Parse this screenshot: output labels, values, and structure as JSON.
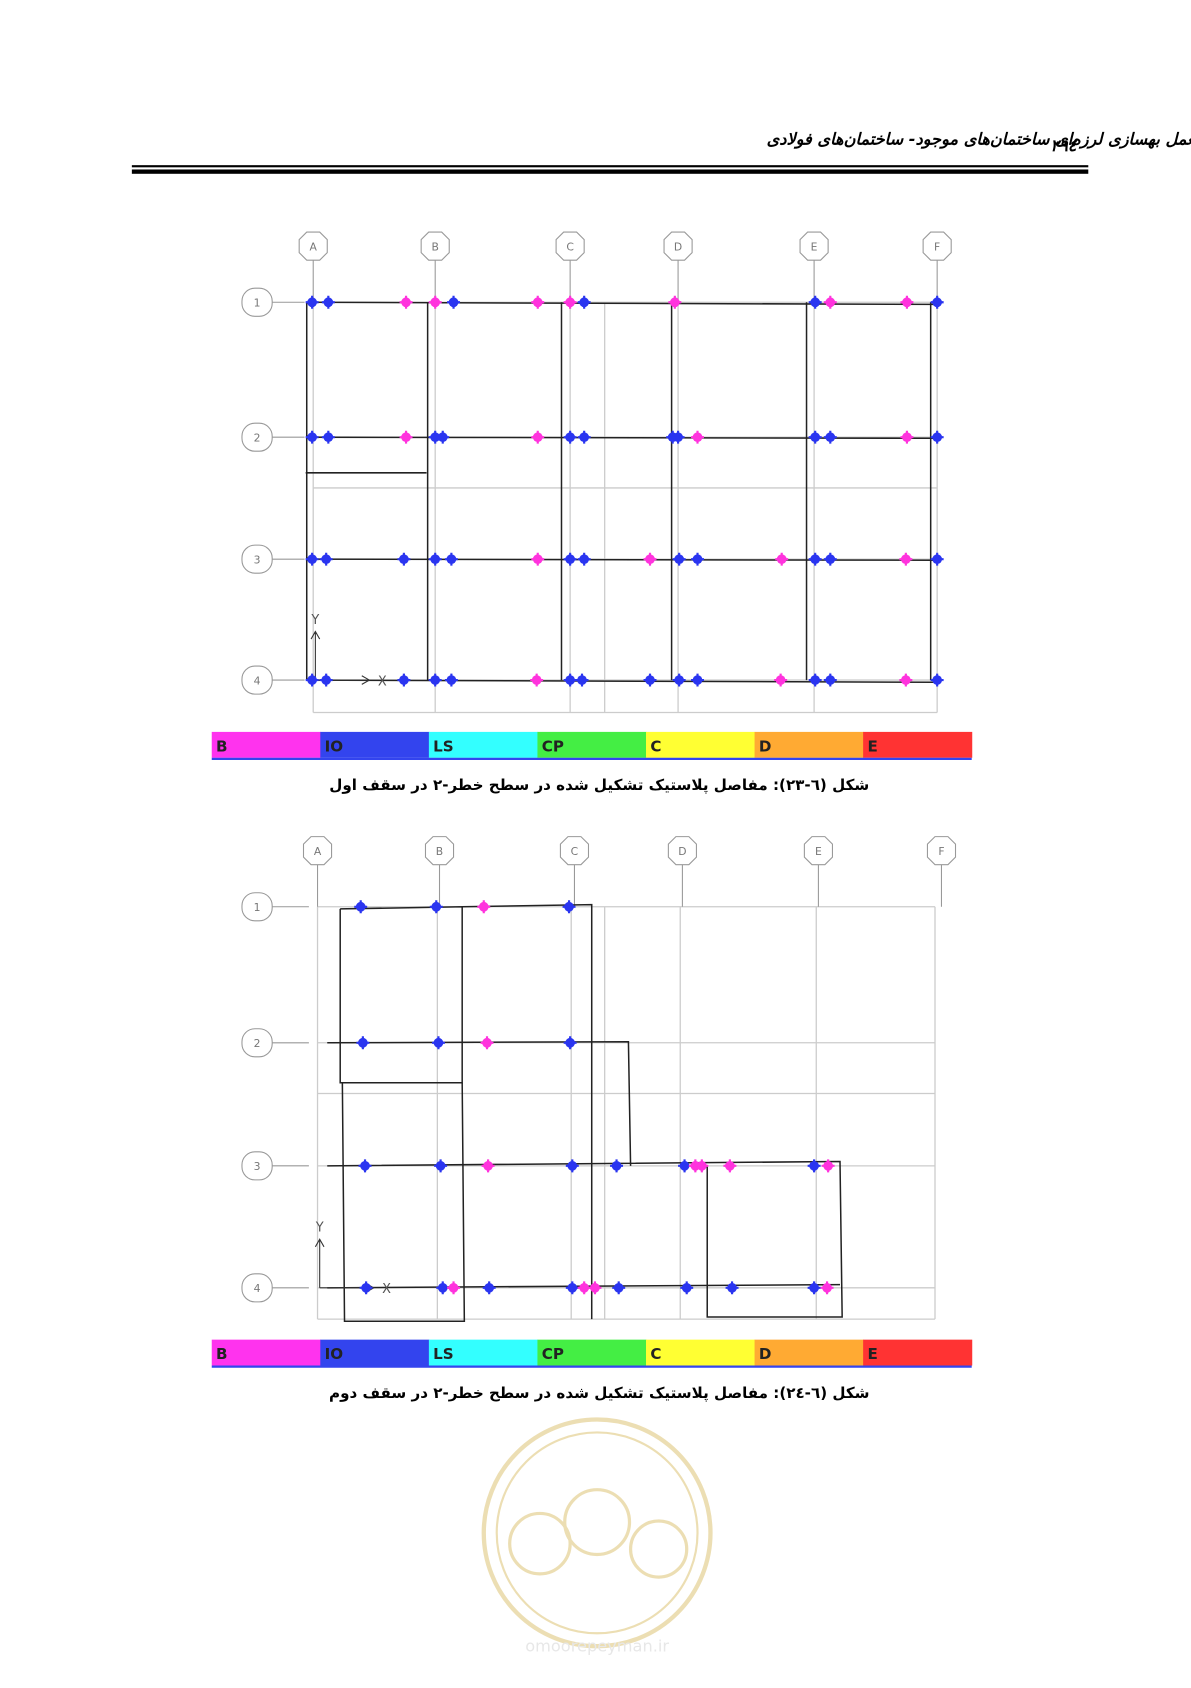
{
  "header": {
    "title": "راهنمای کاربردی دستورالعمل بهسازی لرزه‌ای ساختمان‌های موجود- ساختمان‌های فولادی",
    "page_number": "۲۹٤"
  },
  "figures": [
    {
      "column_labels": [
        "A",
        "B",
        "C",
        "D",
        "E",
        "F"
      ],
      "row_labels": [
        "1",
        "2",
        "3",
        "4"
      ],
      "axis_labels": [
        "Y",
        "X"
      ],
      "legend": [
        "B",
        "IO",
        "LS",
        "CP",
        "C",
        "D",
        "E"
      ],
      "caption": "شکل (٦-٢٣): مفاصل پلاستیک تشکیل شده در سطح خطر-٢ در سقف اول"
    },
    {
      "column_labels": [
        "A",
        "B",
        "C",
        "D",
        "E",
        "F"
      ],
      "row_labels": [
        "1",
        "2",
        "3",
        "4"
      ],
      "axis_labels": [
        "Y",
        "X"
      ],
      "legend": [
        "B",
        "IO",
        "LS",
        "CP",
        "C",
        "D",
        "E"
      ],
      "caption": "شکل (٦-٢٤): مفاصل پلاستیک تشکیل شده در سطح خطر-٢ در سقف دوم"
    }
  ],
  "watermark": "omoorepeyman.ir"
}
